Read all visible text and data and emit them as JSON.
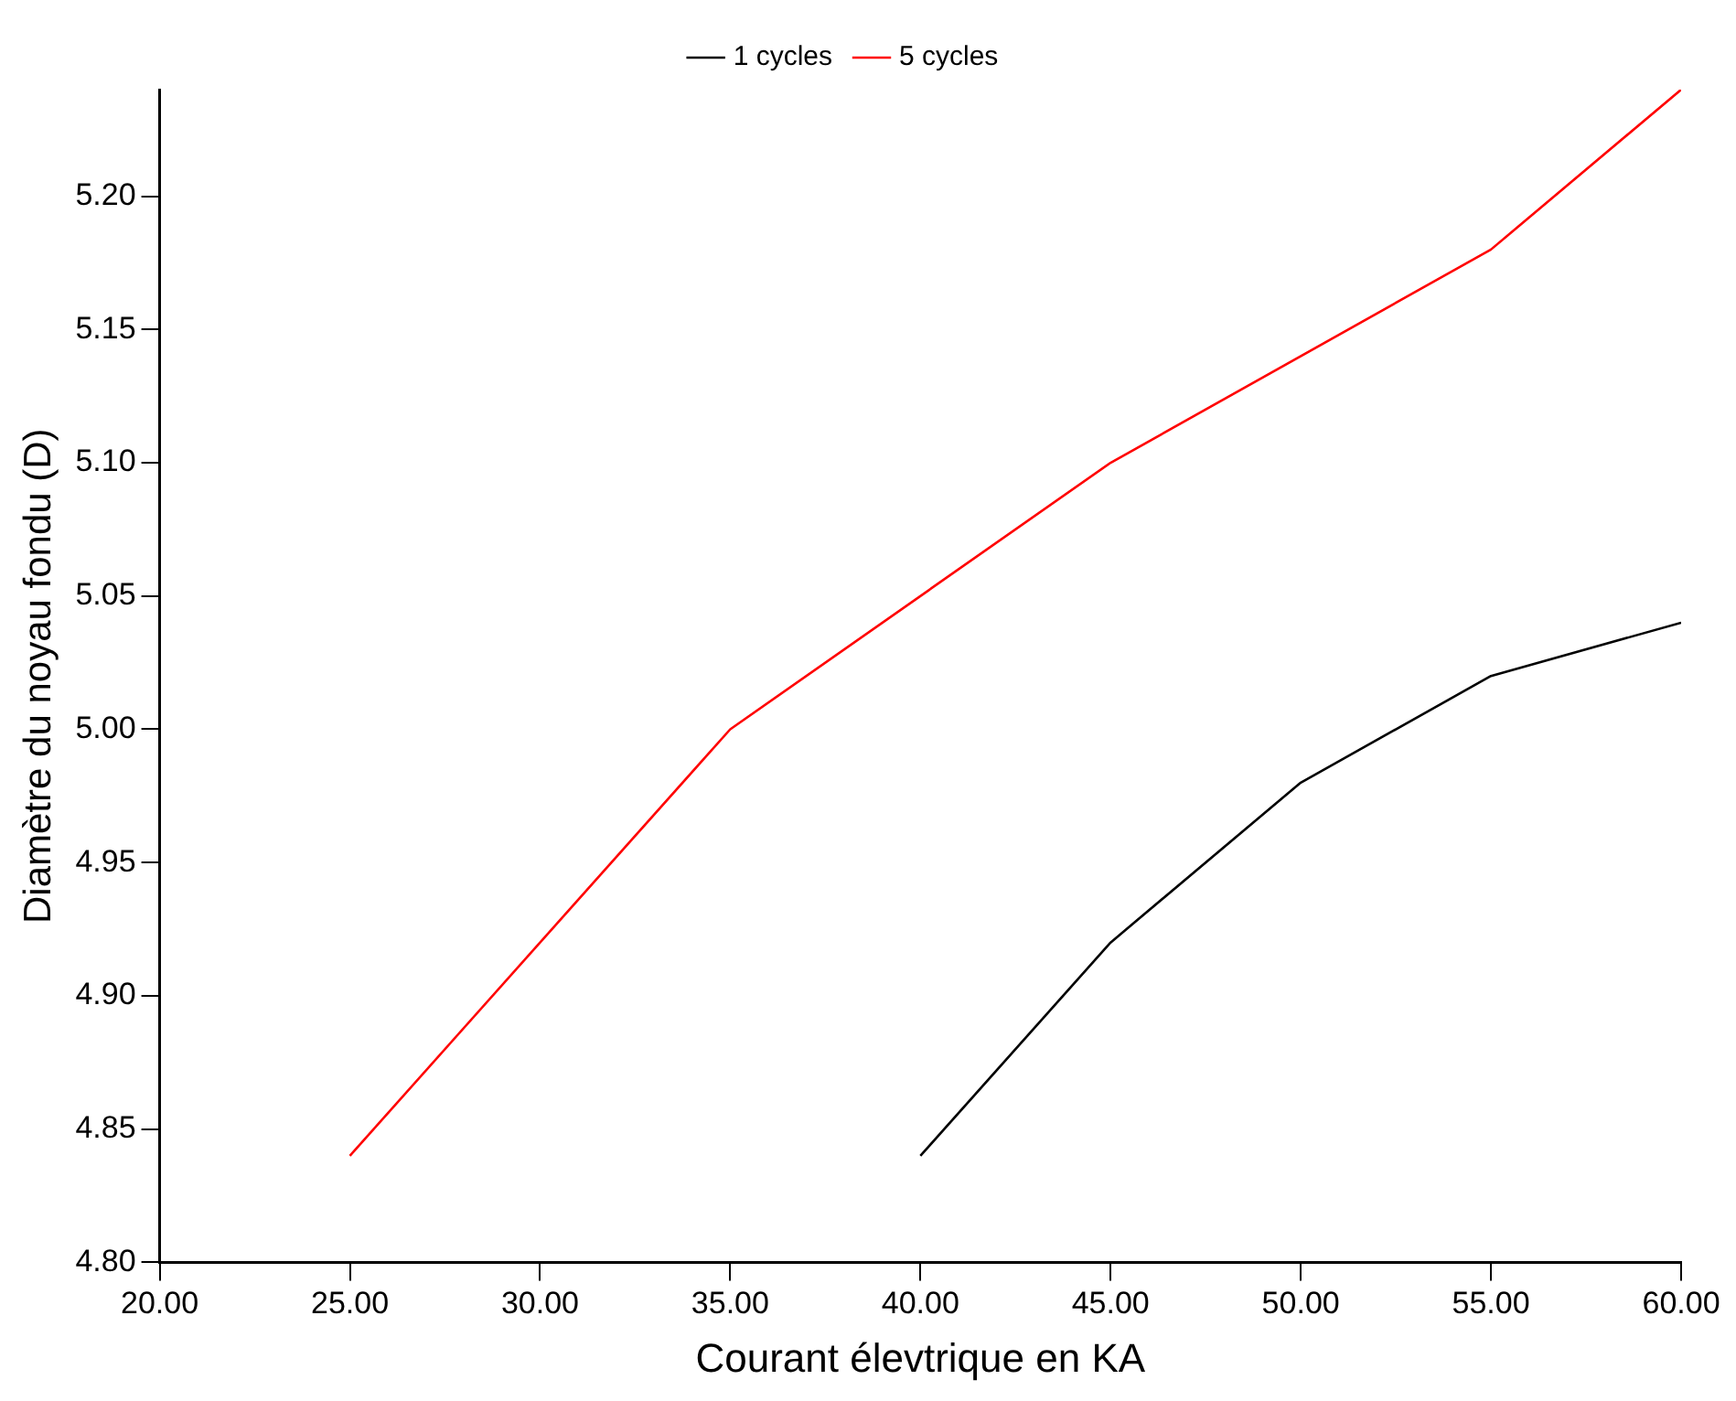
{
  "chart_data": {
    "type": "line",
    "xlabel": "Courant élevtrique en KA",
    "ylabel": "Diamètre du noyau fondu (D)",
    "xlim": [
      20,
      60
    ],
    "xticks": [
      {
        "value": 20,
        "label": "20.00"
      },
      {
        "value": 25,
        "label": "25.00"
      },
      {
        "value": 30,
        "label": "30.00"
      },
      {
        "value": 35,
        "label": "35.00"
      },
      {
        "value": 40,
        "label": "40.00"
      },
      {
        "value": 45,
        "label": "45.00"
      },
      {
        "value": 50,
        "label": "50.00"
      },
      {
        "value": 55,
        "label": "55.00"
      },
      {
        "value": 60,
        "label": "60.00"
      }
    ],
    "ylim": [
      4.8,
      5.24
    ],
    "yticks": [
      {
        "value": 4.8,
        "label": "4.80"
      },
      {
        "value": 4.85,
        "label": "4.85"
      },
      {
        "value": 4.9,
        "label": "4.90"
      },
      {
        "value": 4.95,
        "label": "4.95"
      },
      {
        "value": 5.0,
        "label": "5.00"
      },
      {
        "value": 5.05,
        "label": "5.05"
      },
      {
        "value": 5.1,
        "label": "5.10"
      },
      {
        "value": 5.15,
        "label": "5.15"
      },
      {
        "value": 5.2,
        "label": "5.20"
      }
    ],
    "series": [
      {
        "name": "1 cycles",
        "color": "#000000",
        "x": [
          40,
          45,
          50,
          55,
          60
        ],
        "values": [
          4.84,
          4.92,
          4.98,
          5.02,
          5.04
        ]
      },
      {
        "name": "5 cycles",
        "color": "#ff0000",
        "x": [
          25,
          35,
          45,
          55,
          60
        ],
        "values": [
          4.84,
          5.0,
          5.1,
          5.18,
          5.24
        ]
      }
    ],
    "grid": false,
    "legend": "top",
    "marker": "none",
    "line_style": "solid"
  }
}
